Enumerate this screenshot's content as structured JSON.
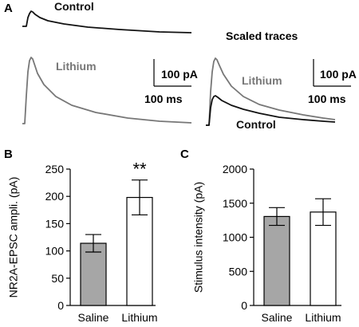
{
  "panels": {
    "a": {
      "letter": "A",
      "scaled_title": "Scaled traces",
      "scale_bar": {
        "amplitude_label": "100 pA",
        "time_label": "100 ms"
      },
      "traces": {
        "control": {
          "label": "Control",
          "color": "#111111"
        },
        "lithium": {
          "label": "Lithium",
          "color": "#777777"
        }
      }
    },
    "b": {
      "letter": "B"
    },
    "c": {
      "letter": "C"
    }
  },
  "chart_data": [
    {
      "panel": "B",
      "type": "bar",
      "categories": [
        "Saline",
        "Lithium"
      ],
      "values": [
        114,
        198
      ],
      "errors": [
        16,
        32
      ],
      "bar_colors": [
        "#a6a6a6",
        "#ffffff"
      ],
      "significance": {
        "category": "Lithium",
        "label": "**"
      },
      "xlabel": "",
      "ylabel": "NR2A-EPSC ampli. (pA)",
      "ylim": [
        0,
        250
      ],
      "yticks": [
        0,
        50,
        100,
        150,
        200,
        250
      ],
      "ytick_labels": [
        "0",
        "50",
        "100",
        "150",
        "200",
        "250"
      ],
      "grid": false
    },
    {
      "panel": "C",
      "type": "bar",
      "categories": [
        "Saline",
        "Lithium"
      ],
      "values": [
        1305,
        1370
      ],
      "errors": [
        130,
        195
      ],
      "bar_colors": [
        "#a6a6a6",
        "#ffffff"
      ],
      "xlabel": "",
      "ylabel": "Stimulus intensity (pA)",
      "ylim": [
        0,
        2000
      ],
      "yticks": [
        0,
        500,
        1000,
        1500,
        2000
      ],
      "ytick_labels": [
        "0",
        "500",
        "1000",
        "1500",
        "2000"
      ],
      "grid": false
    }
  ]
}
